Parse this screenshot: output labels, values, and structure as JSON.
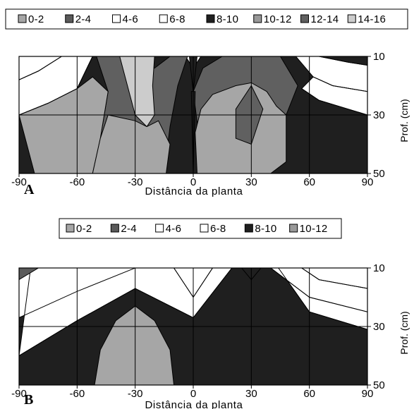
{
  "chart_data": [
    {
      "type": "contour",
      "panel_label": "A",
      "xlabel": "Distância da planta",
      "ylabel": "Prof. (cm)",
      "x_ticks": [
        -90,
        -60,
        -30,
        0,
        30,
        60,
        90
      ],
      "y_ticks": [
        10,
        30,
        50
      ],
      "xlim": [
        -90,
        90
      ],
      "ylim": [
        50,
        10
      ],
      "legend": {
        "placement": "top",
        "entries": [
          {
            "label": "0-2",
            "color": "#a6a6a6"
          },
          {
            "label": "2-4",
            "color": "#5a5a5a"
          },
          {
            "label": "4-6",
            "color": "#ffffff"
          },
          {
            "label": "6-8",
            "color": "#ffffff"
          },
          {
            "label": "8-10",
            "color": "#1f1f1f"
          },
          {
            "label": "10-12",
            "color": "#999999"
          },
          {
            "label": "12-14",
            "color": "#606060"
          },
          {
            "label": "14-16",
            "color": "#cccccc"
          }
        ]
      },
      "regions": [
        {
          "fill": "#1f1f1f",
          "points": [
            [
              -90,
              10
            ],
            [
              90,
              10
            ],
            [
              90,
              50
            ],
            [
              -90,
              50
            ]
          ]
        },
        {
          "fill": "#ffffff",
          "points": [
            [
              -90,
              18
            ],
            [
              -80,
              15
            ],
            [
              -68,
              10
            ],
            [
              -90,
              10
            ]
          ]
        },
        {
          "fill": "#ffffff",
          "points": [
            [
              -90,
              30
            ],
            [
              -75,
              26
            ],
            [
              -60,
              21
            ],
            [
              -52,
              10
            ],
            [
              -68,
              10
            ],
            [
              -80,
              15
            ],
            [
              -90,
              18
            ]
          ]
        },
        {
          "fill": "#ffffff",
          "points": [
            [
              53,
              10
            ],
            [
              65,
              10
            ],
            [
              80,
              12
            ],
            [
              90,
              13
            ],
            [
              90,
              22
            ],
            [
              72,
              20
            ],
            [
              62,
              17
            ]
          ]
        },
        {
          "fill": "#ffffff",
          "points": [
            [
              62,
              17
            ],
            [
              72,
              20
            ],
            [
              90,
              22
            ],
            [
              90,
              30
            ],
            [
              80,
              28
            ],
            [
              65,
              25
            ],
            [
              56,
              21
            ]
          ]
        },
        {
          "fill": "#ffffff",
          "points": [
            [
              -4,
              10
            ],
            [
              0,
              14
            ],
            [
              4,
              10
            ]
          ]
        },
        {
          "fill": "#ffffff",
          "points": [
            [
              -2,
              10
            ],
            [
              0,
              12
            ],
            [
              2,
              10
            ]
          ]
        },
        {
          "fill": "#606060",
          "points": [
            [
              -50,
              10
            ],
            [
              -38,
              10
            ],
            [
              -32,
              14
            ],
            [
              -20,
              14
            ],
            [
              -12,
              10
            ],
            [
              -3,
              10
            ],
            [
              -8,
              20
            ],
            [
              -12,
              34
            ],
            [
              -15,
              50
            ],
            [
              -52,
              50
            ],
            [
              -48,
              38
            ],
            [
              -44,
              22
            ]
          ]
        },
        {
          "fill": "#cccccc",
          "points": [
            [
              -38,
              10
            ],
            [
              -20,
              10
            ],
            [
              -21,
              20
            ],
            [
              -20,
              30
            ],
            [
              -24,
              34
            ],
            [
              -30,
              30
            ],
            [
              -34,
              20
            ]
          ]
        },
        {
          "fill": "#a6a6a6",
          "points": [
            [
              -90,
              30
            ],
            [
              -75,
              26
            ],
            [
              -60,
              21
            ],
            [
              -52,
              17
            ],
            [
              -44,
              22
            ],
            [
              -48,
              38
            ],
            [
              -52,
              50
            ],
            [
              -82,
              50
            ]
          ]
        },
        {
          "fill": "#a6a6a6",
          "points": [
            [
              -52,
              50
            ],
            [
              -48,
              38
            ],
            [
              -44,
              30
            ],
            [
              -30,
              32
            ],
            [
              -24,
              34
            ],
            [
              -18,
              32
            ],
            [
              -12,
              40
            ],
            [
              -14,
              50
            ]
          ]
        },
        {
          "fill": "#606060",
          "points": [
            [
              0,
              22
            ],
            [
              5,
              14
            ],
            [
              15,
              10
            ],
            [
              45,
              10
            ],
            [
              54,
              20
            ],
            [
              48,
              30
            ],
            [
              42,
              38
            ],
            [
              35,
              46
            ],
            [
              5,
              48
            ]
          ]
        },
        {
          "fill": "#a6a6a6",
          "points": [
            [
              1,
              36
            ],
            [
              4,
              28
            ],
            [
              10,
              23
            ],
            [
              22,
              20
            ],
            [
              30,
              19
            ],
            [
              38,
              22
            ],
            [
              43,
              27
            ],
            [
              48,
              30
            ],
            [
              48,
              46
            ],
            [
              40,
              50
            ],
            [
              2,
              50
            ]
          ]
        },
        {
          "fill": "#606060",
          "points": [
            [
              22,
              28
            ],
            [
              30,
              20
            ],
            [
              36,
              28
            ],
            [
              30,
              40
            ],
            [
              22,
              38
            ]
          ]
        },
        {
          "fill": "#1f1f1f",
          "points": [
            [
              -2,
              10
            ],
            [
              0,
              22
            ],
            [
              2,
              10
            ]
          ]
        },
        {
          "fill": "#1f1f1f",
          "points": [
            [
              -1,
              22
            ],
            [
              0,
              50
            ],
            [
              1,
              22
            ]
          ]
        }
      ],
      "contour_lines": [
        [
          [
            -90,
            18
          ],
          [
            -80,
            15
          ],
          [
            -68,
            10
          ]
        ],
        [
          [
            -90,
            30
          ],
          [
            -75,
            26
          ],
          [
            -60,
            21
          ],
          [
            -52,
            10
          ]
        ],
        [
          [
            53,
            10
          ],
          [
            65,
            10
          ],
          [
            80,
            12
          ],
          [
            90,
            13
          ]
        ],
        [
          [
            62,
            17
          ],
          [
            72,
            20
          ],
          [
            90,
            22
          ]
        ],
        [
          [
            56,
            21
          ],
          [
            65,
            25
          ],
          [
            80,
            28
          ],
          [
            90,
            30
          ]
        ]
      ]
    },
    {
      "type": "contour",
      "panel_label": "B",
      "xlabel": "Distância da planta",
      "ylabel": "Prof. (cm)",
      "x_ticks": [
        -90,
        -60,
        -30,
        0,
        30,
        60,
        90
      ],
      "y_ticks": [
        10,
        30,
        50
      ],
      "xlim": [
        -90,
        90
      ],
      "ylim": [
        50,
        10
      ],
      "legend": {
        "placement": "top",
        "entries": [
          {
            "label": "0-2",
            "color": "#a6a6a6"
          },
          {
            "label": "2-4",
            "color": "#5a5a5a"
          },
          {
            "label": "4-6",
            "color": "#ffffff"
          },
          {
            "label": "6-8",
            "color": "#ffffff"
          },
          {
            "label": "8-10",
            "color": "#1f1f1f"
          },
          {
            "label": "10-12",
            "color": "#999999"
          }
        ]
      },
      "regions": [
        {
          "fill": "#1f1f1f",
          "points": [
            [
              -90,
              10
            ],
            [
              90,
              10
            ],
            [
              90,
              50
            ],
            [
              -90,
              50
            ]
          ]
        },
        {
          "fill": "#ffffff",
          "points": [
            [
              -90,
              27
            ],
            [
              -60,
              18
            ],
            [
              -30,
              10
            ],
            [
              -84,
              10
            ],
            [
              -90,
              14
            ]
          ]
        },
        {
          "fill": "#ffffff",
          "points": [
            [
              -90,
              40
            ],
            [
              -60,
              28
            ],
            [
              -30,
              17
            ],
            [
              0,
              27
            ],
            [
              20,
              10
            ],
            [
              -84,
              10
            ]
          ]
        },
        {
          "fill": "#ffffff",
          "points": [
            [
              -10,
              10
            ],
            [
              0,
              20
            ],
            [
              10,
              10
            ]
          ]
        },
        {
          "fill": "#ffffff",
          "points": [
            [
              44,
              10
            ],
            [
              60,
              25
            ],
            [
              90,
              31
            ],
            [
              90,
              10
            ]
          ]
        },
        {
          "fill": "#ffffff",
          "points": [
            [
              40,
              10
            ],
            [
              60,
              20
            ],
            [
              90,
              25
            ],
            [
              90,
              10
            ]
          ]
        },
        {
          "fill": "#ffffff",
          "points": [
            [
              56,
              10
            ],
            [
              65,
              14
            ],
            [
              90,
              17
            ],
            [
              90,
              10
            ]
          ]
        },
        {
          "fill": "#5a5a5a",
          "points": [
            [
              -90,
              10
            ],
            [
              -80,
              10
            ],
            [
              -90,
              14
            ]
          ]
        },
        {
          "fill": "#1f1f1f",
          "points": [
            [
              -30,
              10
            ],
            [
              -30,
              10
            ]
          ]
        },
        {
          "fill": "#1f1f1f",
          "points": [
            [
              25,
              10
            ],
            [
              35,
              10
            ],
            [
              30,
              14
            ]
          ]
        },
        {
          "fill": "#a6a6a6",
          "points": [
            [
              -51,
              50
            ],
            [
              -48,
              38
            ],
            [
              -40,
              28
            ],
            [
              -30,
              23
            ],
            [
              -20,
              28
            ],
            [
              -12,
              38
            ],
            [
              -10,
              50
            ]
          ]
        }
      ],
      "contour_lines": [
        [
          [
            -90,
            27
          ],
          [
            -60,
            18
          ],
          [
            -30,
            10
          ]
        ],
        [
          [
            -90,
            40
          ],
          [
            -60,
            28
          ],
          [
            -30,
            17
          ],
          [
            0,
            27
          ],
          [
            20,
            10
          ]
        ],
        [
          [
            -10,
            10
          ],
          [
            0,
            20
          ],
          [
            10,
            10
          ]
        ],
        [
          [
            44,
            10
          ],
          [
            60,
            25
          ],
          [
            90,
            31
          ]
        ],
        [
          [
            40,
            10
          ],
          [
            60,
            20
          ],
          [
            90,
            25
          ]
        ],
        [
          [
            56,
            10
          ],
          [
            65,
            14
          ],
          [
            90,
            17
          ]
        ]
      ]
    }
  ]
}
